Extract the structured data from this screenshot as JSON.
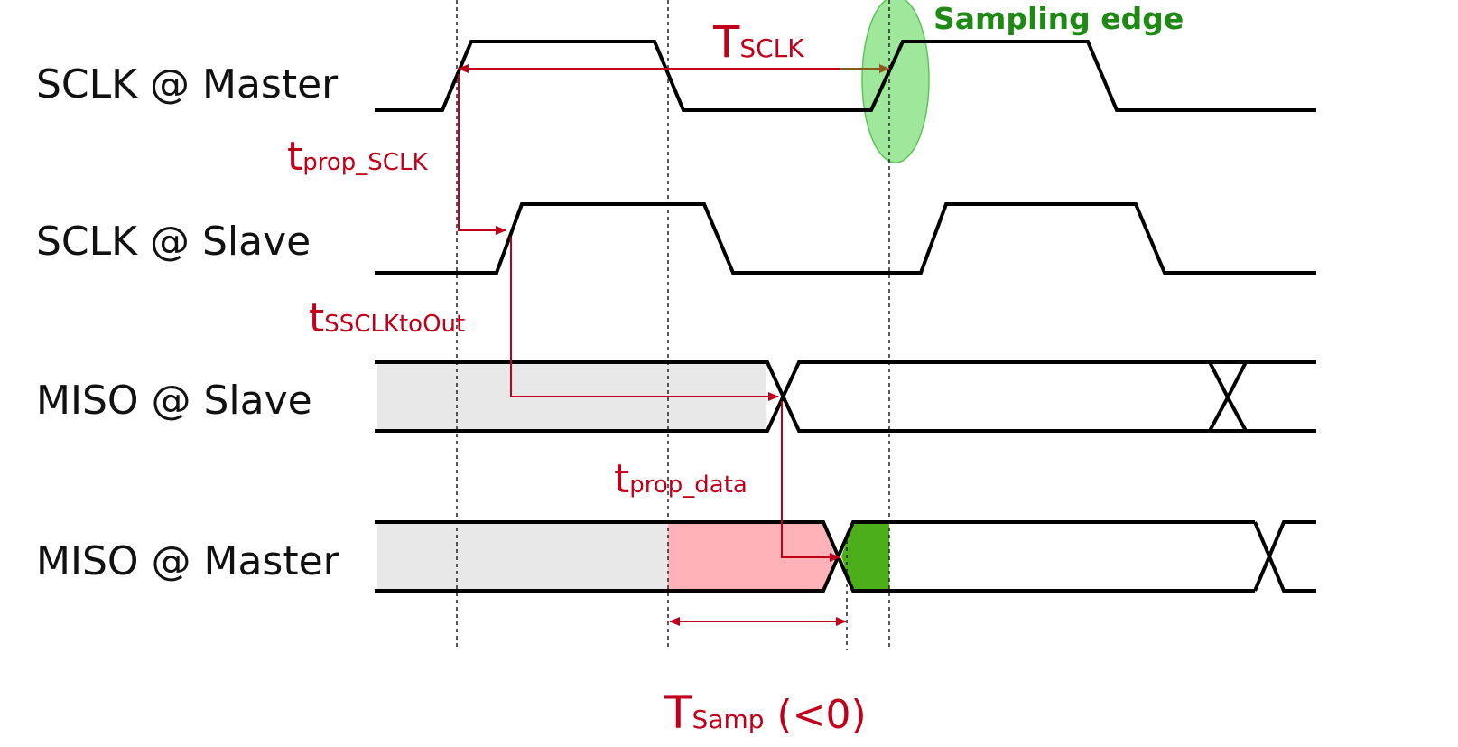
{
  "signals": {
    "sclk_master": "SCLK @ Master",
    "sclk_slave": "SCLK @ Slave",
    "miso_slave": "MISO @ Slave",
    "miso_master": "MISO @ Master"
  },
  "annotations": {
    "t_sclk": {
      "main": "T",
      "sub": "SCLK"
    },
    "t_prop_sclk": {
      "main": "t",
      "sub": "prop_SCLK"
    },
    "t_ssclk_to_out": {
      "main": "t",
      "sub": "SSCLKtoOut"
    },
    "t_prop_data": {
      "main": "t",
      "sub": "prop_data"
    },
    "t_samp": {
      "main": "T",
      "sub": "Samp",
      "suffix": " (<0)"
    },
    "sampling_edge": "Sampling edge"
  },
  "colors": {
    "annotation_red": "#c0001a",
    "sampling_green": "#1e8a14",
    "sampling_ellipse_fill": "#7fe07a",
    "valid_data_green": "#4caf1a",
    "invalid_pink": "#ffb3b8",
    "unknown_gray": "#e8e8e8",
    "signal_black": "#000000"
  }
}
